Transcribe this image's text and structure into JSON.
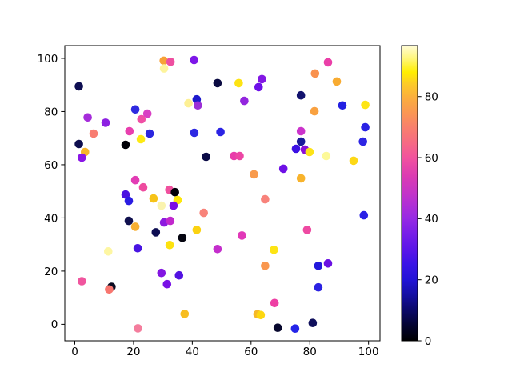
{
  "chart_data": {
    "type": "scatter",
    "title": "",
    "xlabel": "",
    "ylabel": "",
    "xlim": [
      -3.4,
      103.9
    ],
    "ylim": [
      -6.2,
      104.8
    ],
    "x_ticks": [
      0,
      20,
      40,
      60,
      80,
      100
    ],
    "y_ticks": [
      0,
      20,
      40,
      60,
      80,
      100
    ],
    "grid": false,
    "legend": null,
    "marker": {
      "shape": "circle",
      "radius_px": 5.3
    },
    "points": [
      [
        30.3,
        99.1,
        "#f7a137"
      ],
      [
        32.6,
        98.7,
        "#ee4fa0"
      ],
      [
        30.4,
        96.2,
        "#fdf49c"
      ],
      [
        40.6,
        99.4,
        "#7d17e8"
      ],
      [
        1.4,
        89.5,
        "#0e0e52"
      ],
      [
        48.6,
        90.7,
        "#0b0b42"
      ],
      [
        38.7,
        83.1,
        "#fdf095"
      ],
      [
        41.5,
        84.6,
        "#1d1acd"
      ],
      [
        41.9,
        82.3,
        "#9c2fd6"
      ],
      [
        4.4,
        77.8,
        "#a52cda"
      ],
      [
        10.5,
        75.8,
        "#8d21e2"
      ],
      [
        20.6,
        80.8,
        "#2f2ae0"
      ],
      [
        24.7,
        79.2,
        "#d840c4"
      ],
      [
        22.7,
        77.1,
        "#f04fa5"
      ],
      [
        6.4,
        71.7,
        "#f87d72"
      ],
      [
        18.6,
        72.6,
        "#e83fae"
      ],
      [
        25.5,
        71.7,
        "#2b26df"
      ],
      [
        22.5,
        69.6,
        "#fdea13"
      ],
      [
        40.7,
        72.0,
        "#2d28e2"
      ],
      [
        49.6,
        72.3,
        "#2b23e4"
      ],
      [
        17.3,
        67.5,
        "#000006"
      ],
      [
        1.4,
        67.8,
        "#0d0d4e"
      ],
      [
        3.5,
        64.8,
        "#f7b529"
      ],
      [
        2.4,
        62.7,
        "#8a15e6"
      ],
      [
        44.7,
        63.0,
        "#0a0a46"
      ],
      [
        20.6,
        54.2,
        "#e23cb4"
      ],
      [
        23.3,
        51.5,
        "#ee4b9f"
      ],
      [
        86.2,
        98.5,
        "#ea3fa8"
      ],
      [
        81.8,
        94.3,
        "#f9914e"
      ],
      [
        89.2,
        91.3,
        "#f8ab31"
      ],
      [
        55.8,
        90.7,
        "#fde313"
      ],
      [
        63.7,
        92.2,
        "#8318e4"
      ],
      [
        62.6,
        89.2,
        "#6d0fe8"
      ],
      [
        57.7,
        84.0,
        "#9326de"
      ],
      [
        77.0,
        86.1,
        "#12126e"
      ],
      [
        91.1,
        82.3,
        "#2320e2"
      ],
      [
        98.9,
        82.5,
        "#fde515"
      ],
      [
        81.6,
        80.1,
        "#f9a140"
      ],
      [
        77.0,
        72.6,
        "#cb33cb"
      ],
      [
        98.9,
        74.1,
        "#2a22e4"
      ],
      [
        77.0,
        68.7,
        "#1a1a9a"
      ],
      [
        98.1,
        68.7,
        "#2d25e4"
      ],
      [
        75.3,
        66.0,
        "#3c10e4"
      ],
      [
        78.3,
        65.7,
        "#8b0fd8"
      ],
      [
        79.9,
        64.8,
        "#fde317"
      ],
      [
        54.2,
        63.3,
        "#e83caa"
      ],
      [
        56.1,
        63.3,
        "#ec45a4"
      ],
      [
        85.6,
        63.3,
        "#fdf998"
      ],
      [
        94.9,
        61.5,
        "#fdd816"
      ],
      [
        61.0,
        56.4,
        "#f89a4c"
      ],
      [
        71.0,
        58.5,
        "#6e10e6"
      ],
      [
        77.0,
        54.9,
        "#f8b32c"
      ],
      [
        32.2,
        50.6,
        "#f0509e"
      ],
      [
        34.1,
        49.7,
        "#000008"
      ],
      [
        35.0,
        46.7,
        "#fde70a"
      ],
      [
        17.3,
        48.8,
        "#4a12e0"
      ],
      [
        18.4,
        46.4,
        "#2a1ce2"
      ],
      [
        26.8,
        47.3,
        "#f6c318"
      ],
      [
        29.5,
        44.6,
        "#faf3ae"
      ],
      [
        33.6,
        44.6,
        "#7a0ce4"
      ],
      [
        43.9,
        41.9,
        "#f8837a"
      ],
      [
        18.4,
        38.9,
        "#10104e"
      ],
      [
        20.6,
        36.7,
        "#f8b033"
      ],
      [
        30.4,
        38.3,
        "#8d1bdf"
      ],
      [
        32.5,
        38.9,
        "#c128cc"
      ],
      [
        27.6,
        34.6,
        "#0d0d52"
      ],
      [
        36.6,
        32.5,
        "#050510"
      ],
      [
        41.5,
        35.5,
        "#fbd211"
      ],
      [
        21.4,
        28.6,
        "#4814e2"
      ],
      [
        11.4,
        27.4,
        "#fdf6a2"
      ],
      [
        32.3,
        29.8,
        "#fde20e"
      ],
      [
        48.6,
        28.3,
        "#c42ecc"
      ],
      [
        29.5,
        19.3,
        "#8316e2"
      ],
      [
        35.5,
        18.4,
        "#5212e2"
      ],
      [
        2.4,
        16.2,
        "#f0559e"
      ],
      [
        31.4,
        15.1,
        "#7911e6"
      ],
      [
        12.5,
        14.1,
        "#0a0a20"
      ],
      [
        11.7,
        13.1,
        "#f8766f"
      ],
      [
        37.4,
        3.9,
        "#f7bd20"
      ],
      [
        21.5,
        -1.5,
        "#f47d9d"
      ],
      [
        64.8,
        47.0,
        "#f8827b"
      ],
      [
        98.4,
        41.0,
        "#2a20e6"
      ],
      [
        79.1,
        35.5,
        "#ee4aa2"
      ],
      [
        56.9,
        33.4,
        "#e138b8"
      ],
      [
        67.8,
        28.0,
        "#fde414"
      ],
      [
        64.8,
        22.0,
        "#f9974f"
      ],
      [
        82.9,
        22.0,
        "#2218dc"
      ],
      [
        86.2,
        22.9,
        "#6a10e2"
      ],
      [
        82.9,
        13.9,
        "#2b22e2"
      ],
      [
        68.0,
        8.0,
        "#ee3fa4"
      ],
      [
        62.2,
        3.8,
        "#f5b829"
      ],
      [
        63.3,
        3.5,
        "#fdd70f"
      ],
      [
        69.1,
        -1.3,
        "#08082e"
      ],
      [
        75.0,
        -1.6,
        "#2424e8"
      ],
      [
        81.0,
        0.5,
        "#10105c"
      ]
    ],
    "colorbar": {
      "position": "right",
      "vmin": 0,
      "vmax": 96.7,
      "ticks": [
        0,
        20,
        40,
        60,
        80
      ],
      "gradient": [
        [
          0.0,
          "#000000"
        ],
        [
          0.05,
          "#04042e"
        ],
        [
          0.1,
          "#0a0864"
        ],
        [
          0.155,
          "#150fa2"
        ],
        [
          0.207,
          "#2213d6"
        ],
        [
          0.26,
          "#3a14e6"
        ],
        [
          0.31,
          "#5b16e8"
        ],
        [
          0.36,
          "#761ee8"
        ],
        [
          0.414,
          "#9629e4"
        ],
        [
          0.46,
          "#b02fd6"
        ],
        [
          0.5,
          "#c434c8"
        ],
        [
          0.56,
          "#dc3cb2"
        ],
        [
          0.62,
          "#f1539e"
        ],
        [
          0.67,
          "#f66a84"
        ],
        [
          0.724,
          "#f8806c"
        ],
        [
          0.775,
          "#fa9852"
        ],
        [
          0.827,
          "#fbb03c"
        ],
        [
          0.87,
          "#fccb28"
        ],
        [
          0.91,
          "#ffee00"
        ],
        [
          0.955,
          "#fff677"
        ],
        [
          1.0,
          "#fffcd8"
        ]
      ]
    },
    "colors": {
      "background": "#ffffff",
      "axes_background": "#ffffff",
      "spine": "#000000",
      "tick_label": "#000000"
    }
  }
}
